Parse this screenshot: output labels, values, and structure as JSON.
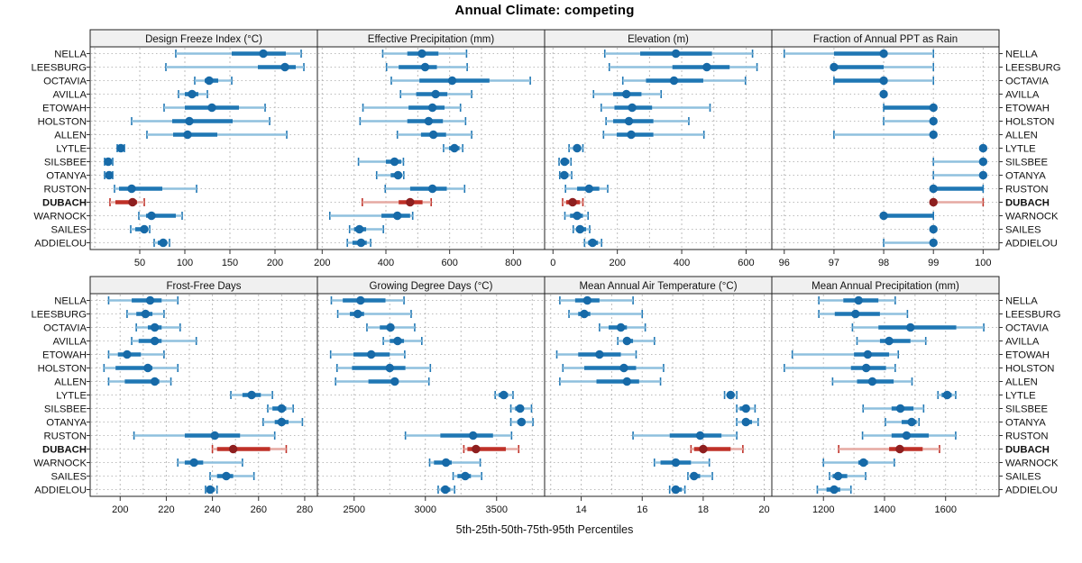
{
  "title": "Annual Climate: competing",
  "axis_label": "5th-25th-50th-75th-95th Percentiles",
  "colors": {
    "blue": "#1f77b4",
    "blue_light": "#8fc0de",
    "blue_dot": "#176aa8",
    "red": "#bf3128",
    "red_light": "#e5a9a2",
    "red_dot": "#8e1f1f",
    "strip_bg": "#f0f0f0",
    "panel_border": "#222222",
    "grid": "#bcbcbc",
    "tick": "#333333",
    "label_text": "#111111"
  },
  "highlight_station": "DUBACH",
  "chart_data": {
    "type": "dotplot-percentiles",
    "percentiles": [
      5,
      25,
      50,
      75,
      95
    ],
    "stations": [
      "NELLA",
      "LEESBURG",
      "OCTAVIA",
      "AVILLA",
      "ETOWAH",
      "HOLSTON",
      "ALLEN",
      "LYTLE",
      "SILSBEE",
      "OTANYA",
      "RUSTON",
      "DUBACH",
      "WARNOCK",
      "SAILES",
      "ADDIELOU"
    ],
    "highlight_index": 11,
    "panels": [
      {
        "title": "Design Freeze Index (°C)",
        "xlim": [
          -5,
          247
        ],
        "ticks": [
          50,
          100,
          150,
          200
        ],
        "grid": [
          0,
          50,
          100,
          150,
          200
        ],
        "values": [
          [
            90,
            152,
            187,
            212,
            229
          ],
          [
            79,
            181,
            211,
            223,
            232
          ],
          [
            111,
            122,
            127,
            137,
            152
          ],
          [
            93,
            100,
            108,
            115,
            125
          ],
          [
            77,
            100,
            130,
            160,
            189
          ],
          [
            41,
            86,
            105,
            153,
            194
          ],
          [
            58,
            87,
            103,
            136,
            213
          ],
          [
            25,
            27,
            29,
            31,
            33
          ],
          [
            11,
            13,
            15,
            17,
            20
          ],
          [
            11,
            14,
            16,
            18,
            20
          ],
          [
            22,
            27,
            41,
            75,
            113
          ],
          [
            17,
            23,
            42,
            47,
            55
          ],
          [
            49,
            57,
            63,
            90,
            97
          ],
          [
            40,
            45,
            55,
            58,
            61
          ],
          [
            66,
            70,
            76,
            80,
            83
          ]
        ]
      },
      {
        "title": "Effective Precipitation (mm)",
        "xlim": [
          185,
          898
        ],
        "ticks": [
          200,
          400,
          600,
          800
        ],
        "grid": [
          200,
          300,
          400,
          500,
          600,
          700,
          800
        ],
        "values": [
          [
            390,
            467,
            513,
            565,
            653
          ],
          [
            402,
            440,
            523,
            560,
            655
          ],
          [
            417,
            505,
            608,
            725,
            853
          ],
          [
            446,
            495,
            556,
            593,
            669
          ],
          [
            328,
            471,
            546,
            584,
            634
          ],
          [
            319,
            467,
            534,
            579,
            650
          ],
          [
            436,
            510,
            549,
            589,
            669
          ],
          [
            581,
            598,
            615,
            631,
            641
          ],
          [
            314,
            400,
            427,
            448,
            455
          ],
          [
            371,
            415,
            438,
            450,
            456
          ],
          [
            398,
            476,
            546,
            591,
            647
          ],
          [
            326,
            440,
            476,
            515,
            542
          ],
          [
            224,
            386,
            436,
            476,
            484
          ],
          [
            286,
            300,
            317,
            338,
            392
          ],
          [
            279,
            295,
            322,
            340,
            352
          ]
        ]
      },
      {
        "title": "Elevation (m)",
        "xlim": [
          -26,
          680
        ],
        "ticks": [
          0,
          200,
          400,
          600
        ],
        "grid": [
          0,
          100,
          200,
          300,
          400,
          500,
          600
        ],
        "values": [
          [
            161,
            271,
            382,
            494,
            620
          ],
          [
            175,
            371,
            478,
            549,
            634
          ],
          [
            217,
            289,
            376,
            467,
            598
          ],
          [
            126,
            187,
            228,
            275,
            336
          ],
          [
            150,
            191,
            246,
            308,
            488
          ],
          [
            165,
            187,
            236,
            312,
            422
          ],
          [
            157,
            198,
            243,
            312,
            469
          ],
          [
            50,
            63,
            75,
            86,
            93
          ],
          [
            19,
            25,
            36,
            50,
            56
          ],
          [
            21,
            27,
            35,
            48,
            58
          ],
          [
            39,
            75,
            112,
            144,
            170
          ],
          [
            30,
            41,
            61,
            84,
            93
          ],
          [
            37,
            53,
            75,
            93,
            109
          ],
          [
            63,
            72,
            84,
            103,
            114
          ],
          [
            98,
            109,
            123,
            140,
            151
          ]
        ]
      },
      {
        "title": "Fraction of Annual PPT as Rain",
        "xlim": [
          95.75,
          100.32
        ],
        "ticks": [
          96,
          97,
          98,
          99,
          100
        ],
        "grid": [
          96,
          97,
          98,
          99,
          100
        ],
        "values": [
          [
            96,
            97,
            98,
            98,
            99
          ],
          [
            97,
            97,
            97,
            98,
            99
          ],
          [
            97,
            97,
            98,
            98,
            99
          ],
          [
            98,
            98,
            98,
            98,
            98
          ],
          [
            98,
            98,
            99,
            99,
            99
          ],
          [
            98,
            99,
            99,
            99,
            99
          ],
          [
            97,
            99,
            99,
            99,
            99
          ],
          [
            100,
            100,
            100,
            100,
            100
          ],
          [
            99,
            100,
            100,
            100,
            100
          ],
          [
            99,
            100,
            100,
            100,
            100
          ],
          [
            99,
            99,
            99,
            100,
            100
          ],
          [
            99,
            99,
            99,
            99,
            100
          ],
          [
            98,
            98,
            98,
            99,
            99
          ],
          [
            99,
            99,
            99,
            99,
            99
          ],
          [
            98,
            99,
            99,
            99,
            99
          ]
        ]
      },
      {
        "title": "Frost-Free Days",
        "xlim": [
          187,
          285.5
        ],
        "ticks": [
          200,
          220,
          240,
          260,
          280
        ],
        "grid": [
          190,
          200,
          210,
          220,
          230,
          240,
          250,
          260,
          270,
          280
        ],
        "values": [
          [
            195,
            205,
            213,
            218,
            225
          ],
          [
            203,
            207,
            211,
            214,
            219
          ],
          [
            207,
            212,
            215,
            218,
            226
          ],
          [
            205,
            208,
            215,
            218,
            233
          ],
          [
            195,
            199,
            203,
            209,
            219
          ],
          [
            193,
            198,
            212,
            214,
            225
          ],
          [
            195,
            202,
            215,
            217,
            222
          ],
          [
            248,
            253,
            257,
            261,
            266
          ],
          [
            264,
            266,
            270,
            272,
            275
          ],
          [
            262,
            267,
            270,
            273,
            279
          ],
          [
            206,
            228,
            241,
            252,
            267
          ],
          [
            240,
            242,
            249,
            265,
            272
          ],
          [
            225,
            228,
            232,
            236,
            253
          ],
          [
            239,
            242,
            246,
            249,
            258
          ],
          [
            237,
            238,
            239,
            241,
            242
          ]
        ]
      },
      {
        "title": "Growing Degree Days (°C)",
        "xlim": [
          2242,
          3837
        ],
        "ticks": [
          2500,
          3000,
          3500
        ],
        "grid": [
          2250,
          2500,
          2750,
          3000,
          3250,
          3500,
          3750
        ],
        "values": [
          [
            2340,
            2420,
            2545,
            2720,
            2850
          ],
          [
            2385,
            2470,
            2525,
            2570,
            2900
          ],
          [
            2590,
            2680,
            2755,
            2780,
            2925
          ],
          [
            2705,
            2750,
            2805,
            2850,
            2975
          ],
          [
            2335,
            2495,
            2620,
            2750,
            2855
          ],
          [
            2380,
            2485,
            2750,
            2860,
            3035
          ],
          [
            2370,
            2600,
            2785,
            2810,
            3025
          ],
          [
            3490,
            3515,
            3550,
            3580,
            3615
          ],
          [
            3600,
            3630,
            3665,
            3690,
            3745
          ],
          [
            3600,
            3645,
            3675,
            3700,
            3755
          ],
          [
            2860,
            3105,
            3335,
            3475,
            3605
          ],
          [
            3270,
            3295,
            3355,
            3565,
            3655
          ],
          [
            3030,
            3060,
            3145,
            3185,
            3385
          ],
          [
            3195,
            3225,
            3280,
            3320,
            3395
          ],
          [
            3090,
            3110,
            3140,
            3175,
            3205
          ]
        ]
      },
      {
        "title": "Mean Annual Air Temperature (°C)",
        "xlim": [
          12.8,
          20.25
        ],
        "ticks": [
          14,
          16,
          18,
          20
        ],
        "grid": [
          13,
          14,
          15,
          16,
          17,
          18,
          19,
          20
        ],
        "values": [
          [
            13.3,
            13.8,
            14.2,
            14.6,
            15.7
          ],
          [
            13.6,
            13.9,
            14.1,
            14.3,
            16.0
          ],
          [
            14.6,
            14.9,
            15.3,
            15.5,
            16.1
          ],
          [
            15.2,
            15.4,
            15.5,
            15.7,
            16.4
          ],
          [
            13.2,
            13.9,
            14.6,
            15.3,
            15.8
          ],
          [
            13.4,
            14.1,
            15.4,
            15.8,
            16.7
          ],
          [
            13.3,
            14.5,
            15.5,
            15.9,
            16.6
          ],
          [
            18.7,
            18.8,
            18.9,
            19.0,
            19.1
          ],
          [
            19.1,
            19.2,
            19.4,
            19.5,
            19.7
          ],
          [
            19.1,
            19.3,
            19.4,
            19.6,
            19.8
          ],
          [
            15.7,
            16.9,
            17.9,
            18.6,
            19.1
          ],
          [
            17.6,
            17.7,
            18.0,
            18.9,
            19.3
          ],
          [
            16.4,
            16.6,
            17.1,
            17.6,
            18.2
          ],
          [
            17.5,
            17.6,
            17.7,
            17.9,
            18.3
          ],
          [
            16.9,
            17.0,
            17.1,
            17.3,
            17.4
          ]
        ]
      },
      {
        "title": "Mean Annual Precipitation (mm)",
        "xlim": [
          1031,
          1775
        ],
        "ticks": [
          1200,
          1400,
          1600
        ],
        "grid": [
          1100,
          1200,
          1300,
          1400,
          1500,
          1600,
          1700
        ],
        "values": [
          [
            1185,
            1265,
            1315,
            1380,
            1435
          ],
          [
            1185,
            1237,
            1305,
            1385,
            1475
          ],
          [
            1295,
            1380,
            1485,
            1635,
            1725
          ],
          [
            1310,
            1385,
            1415,
            1485,
            1535
          ],
          [
            1098,
            1300,
            1345,
            1415,
            1445
          ],
          [
            1072,
            1290,
            1340,
            1405,
            1435
          ],
          [
            1230,
            1310,
            1360,
            1430,
            1490
          ],
          [
            1575,
            1587,
            1605,
            1620,
            1633
          ],
          [
            1330,
            1423,
            1452,
            1495,
            1528
          ],
          [
            1403,
            1456,
            1489,
            1505,
            1513
          ],
          [
            1328,
            1423,
            1472,
            1545,
            1633
          ],
          [
            1250,
            1415,
            1450,
            1525,
            1580
          ],
          [
            1200,
            1314,
            1331,
            1346,
            1432
          ],
          [
            1220,
            1230,
            1248,
            1278,
            1338
          ],
          [
            1180,
            1210,
            1235,
            1255,
            1290
          ]
        ]
      }
    ]
  }
}
